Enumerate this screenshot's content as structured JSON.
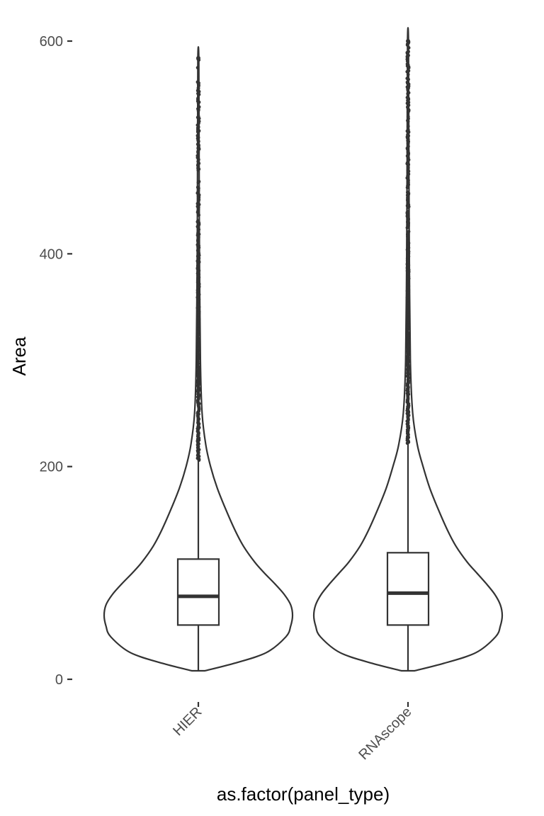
{
  "chart_data": {
    "type": "violin",
    "xlabel": "as.factor(panel_type)",
    "ylabel": "Area",
    "ylim": [
      0,
      600
    ],
    "y_ticks": [
      0,
      200,
      400,
      600
    ],
    "categories": [
      "HIER",
      "RNAscope"
    ],
    "grid": false,
    "legend": "none",
    "series": [
      {
        "category": "HIER",
        "box": {
          "lower_whisker": 8,
          "q1": 51,
          "median": 78,
          "q3": 113,
          "upper_whisker": 206
        },
        "outliers_range": [
          206,
          584
        ],
        "density_profile": [
          {
            "y": 8,
            "w": 0.07
          },
          {
            "y": 15,
            "w": 0.38
          },
          {
            "y": 25,
            "w": 0.72
          },
          {
            "y": 40,
            "w": 0.93
          },
          {
            "y": 50,
            "w": 0.98
          },
          {
            "y": 60,
            "w": 1.0
          },
          {
            "y": 70,
            "w": 0.98
          },
          {
            "y": 80,
            "w": 0.91
          },
          {
            "y": 90,
            "w": 0.81
          },
          {
            "y": 100,
            "w": 0.7
          },
          {
            "y": 110,
            "w": 0.6
          },
          {
            "y": 125,
            "w": 0.48
          },
          {
            "y": 140,
            "w": 0.39
          },
          {
            "y": 160,
            "w": 0.29
          },
          {
            "y": 180,
            "w": 0.2
          },
          {
            "y": 200,
            "w": 0.13
          },
          {
            "y": 220,
            "w": 0.08
          },
          {
            "y": 250,
            "w": 0.04
          },
          {
            "y": 300,
            "w": 0.022
          },
          {
            "y": 400,
            "w": 0.012
          },
          {
            "y": 500,
            "w": 0.008
          },
          {
            "y": 584,
            "w": 0.005
          }
        ]
      },
      {
        "category": "RNAscope",
        "box": {
          "lower_whisker": 8,
          "q1": 51,
          "median": 81,
          "q3": 119,
          "upper_whisker": 222
        },
        "outliers_range": [
          222,
          600
        ],
        "density_profile": [
          {
            "y": 8,
            "w": 0.07
          },
          {
            "y": 15,
            "w": 0.38
          },
          {
            "y": 25,
            "w": 0.72
          },
          {
            "y": 40,
            "w": 0.93
          },
          {
            "y": 50,
            "w": 0.98
          },
          {
            "y": 60,
            "w": 1.0
          },
          {
            "y": 70,
            "w": 0.98
          },
          {
            "y": 80,
            "w": 0.92
          },
          {
            "y": 90,
            "w": 0.83
          },
          {
            "y": 100,
            "w": 0.73
          },
          {
            "y": 110,
            "w": 0.63
          },
          {
            "y": 125,
            "w": 0.51
          },
          {
            "y": 140,
            "w": 0.42
          },
          {
            "y": 160,
            "w": 0.32
          },
          {
            "y": 180,
            "w": 0.23
          },
          {
            "y": 200,
            "w": 0.16
          },
          {
            "y": 220,
            "w": 0.1
          },
          {
            "y": 250,
            "w": 0.05
          },
          {
            "y": 300,
            "w": 0.025
          },
          {
            "y": 400,
            "w": 0.014
          },
          {
            "y": 500,
            "w": 0.009
          },
          {
            "y": 600,
            "w": 0.005
          }
        ]
      }
    ]
  }
}
